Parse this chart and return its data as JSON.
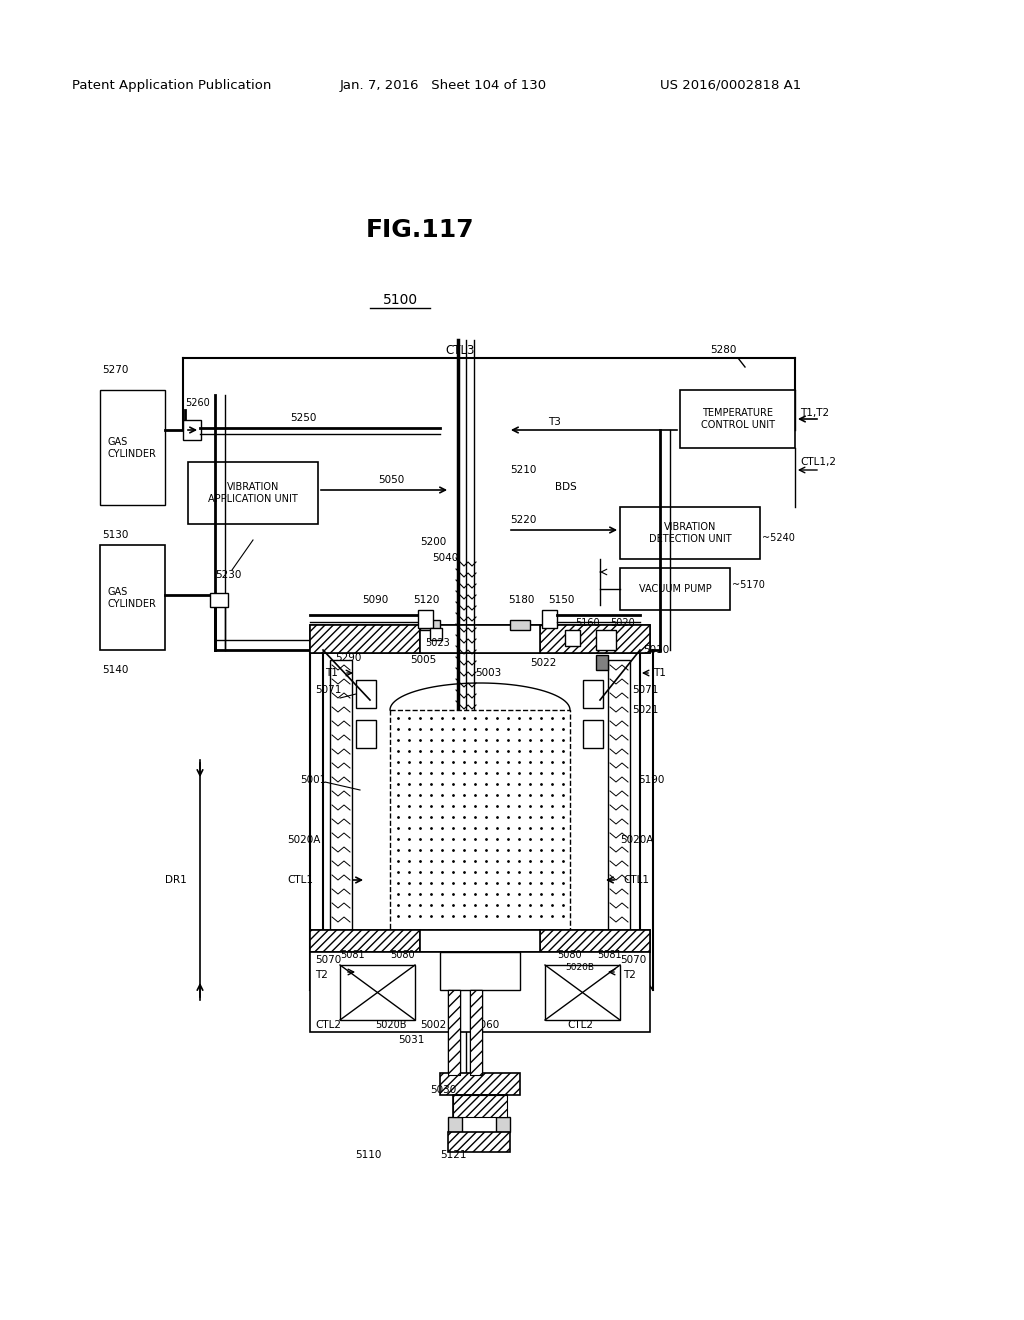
{
  "bg_color": "#ffffff",
  "title_fig": "FIG.117",
  "header_left": "Patent Application Publication",
  "header_middle": "Jan. 7, 2016   Sheet 104 of 130",
  "header_right": "US 2016/0002818 A1"
}
